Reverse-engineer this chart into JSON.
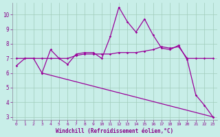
{
  "xlabel": "Windchill (Refroidissement éolien,°C)",
  "bg_color": "#c8eee8",
  "grid_color": "#a0ccbb",
  "line_color": "#990099",
  "xlim": [
    -0.5,
    23.5
  ],
  "ylim": [
    2.8,
    10.8
  ],
  "yticks": [
    3,
    4,
    5,
    6,
    7,
    8,
    9,
    10
  ],
  "xticks": [
    0,
    1,
    2,
    3,
    4,
    5,
    6,
    7,
    8,
    9,
    10,
    11,
    12,
    13,
    14,
    15,
    16,
    17,
    18,
    19,
    20,
    21,
    22,
    23
  ],
  "line1_x": [
    0,
    1,
    2,
    3,
    4,
    5,
    6,
    7,
    8,
    9,
    10,
    11,
    12,
    13,
    14,
    15,
    16,
    17,
    18,
    19,
    20,
    21,
    22,
    23
  ],
  "line1_y": [
    6.5,
    7.0,
    7.0,
    6.0,
    7.6,
    7.0,
    6.6,
    7.3,
    7.4,
    7.4,
    7.0,
    8.5,
    10.5,
    9.5,
    8.8,
    9.7,
    8.6,
    7.7,
    7.6,
    7.9,
    6.9,
    4.5,
    3.8,
    3.0
  ],
  "line2_x": [
    0,
    1,
    2,
    3,
    4,
    5,
    6,
    7,
    8,
    9,
    10,
    11,
    12,
    13,
    14,
    15,
    16,
    17,
    18,
    19,
    20,
    21,
    22,
    23
  ],
  "line2_y": [
    7.0,
    7.0,
    7.0,
    7.0,
    7.0,
    7.0,
    7.0,
    7.2,
    7.3,
    7.3,
    7.3,
    7.3,
    7.4,
    7.4,
    7.4,
    7.5,
    7.6,
    7.8,
    7.7,
    7.8,
    7.0,
    7.0,
    7.0,
    7.0
  ],
  "line3_x": [
    3,
    23
  ],
  "line3_y": [
    6.0,
    3.0
  ]
}
